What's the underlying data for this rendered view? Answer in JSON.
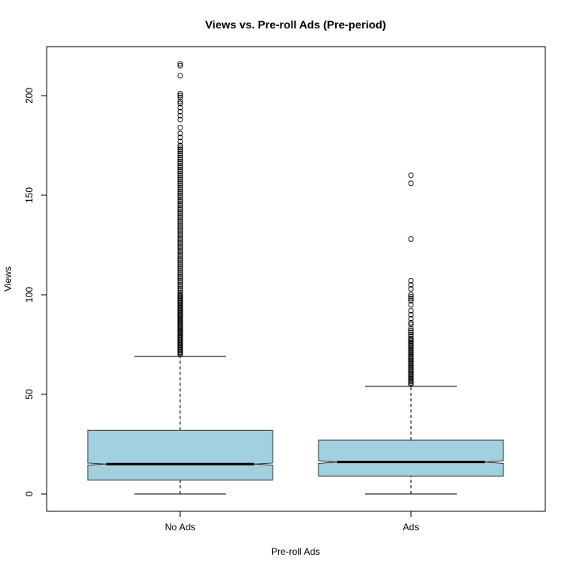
{
  "chart_data": {
    "type": "boxplot",
    "title": "Views vs. Pre-roll Ads (Pre-period)",
    "xlabel": "Pre-roll Ads",
    "ylabel": "Views",
    "ylim": [
      -9,
      225
    ],
    "y_ticks": [
      0,
      50,
      100,
      150,
      200
    ],
    "notch": true,
    "box_color": "#a3d0e0",
    "categories": [
      "No Ads",
      "Ads"
    ],
    "groups": [
      {
        "name": "No Ads",
        "whisker_low": 0,
        "q1": 7,
        "median": 15,
        "q3": 32,
        "whisker_high": 69,
        "notch_low": 14.5,
        "notch_high": 15.5,
        "outliers": [
          70,
          70.6,
          71.2,
          71.8,
          72.4,
          73,
          73.6,
          74.2,
          74.8,
          75.4,
          76,
          76.6,
          77.2,
          77.8,
          78.4,
          79,
          79.6,
          80.2,
          80.8,
          81.4,
          82,
          82.6,
          83.2,
          83.8,
          84.4,
          85,
          85.6,
          86.2,
          86.8,
          87.4,
          88,
          88.6,
          89.2,
          89.8,
          90.4,
          91,
          91.6,
          92.2,
          92.8,
          93.4,
          94,
          94.6,
          95.2,
          95.8,
          96.4,
          97,
          97.6,
          98.2,
          98.8,
          99.4,
          100,
          101,
          102,
          103,
          104,
          105,
          106,
          107,
          108,
          109,
          110,
          111,
          112,
          113,
          114,
          115,
          116,
          117,
          118,
          119,
          120,
          121,
          122,
          123,
          124,
          125,
          126,
          127,
          128,
          129,
          130,
          131,
          132,
          133,
          134,
          135,
          136,
          137,
          138,
          139,
          140,
          141,
          142,
          143,
          144,
          145,
          146,
          147,
          148,
          149,
          150,
          151,
          152,
          153,
          154,
          155,
          156,
          157,
          158,
          159,
          160,
          161,
          162,
          163,
          164,
          165,
          166,
          167,
          168,
          169,
          170,
          171,
          172,
          173,
          174,
          175,
          177,
          179,
          181,
          184,
          188,
          190,
          192,
          194,
          196,
          197,
          199,
          200,
          201,
          210,
          215,
          216
        ]
      },
      {
        "name": "Ads",
        "whisker_low": 0,
        "q1": 9,
        "median": 16,
        "q3": 27,
        "whisker_high": 54,
        "notch_low": 15.3,
        "notch_high": 16.7,
        "outliers": [
          55,
          55.7,
          56.4,
          57.1,
          57.8,
          58.5,
          59.2,
          59.9,
          60.6,
          61.3,
          62,
          62.7,
          63.4,
          64.1,
          64.8,
          65.5,
          66.2,
          66.9,
          67.6,
          68.3,
          69,
          69.7,
          70.4,
          71.1,
          71.8,
          72.5,
          73.2,
          73.9,
          74.6,
          75.3,
          76,
          76.7,
          77.4,
          78,
          79,
          80,
          81,
          82,
          83,
          85,
          86,
          88,
          90,
          92,
          95,
          97,
          98,
          99,
          100,
          103,
          105,
          107,
          128,
          156,
          160
        ]
      }
    ]
  }
}
